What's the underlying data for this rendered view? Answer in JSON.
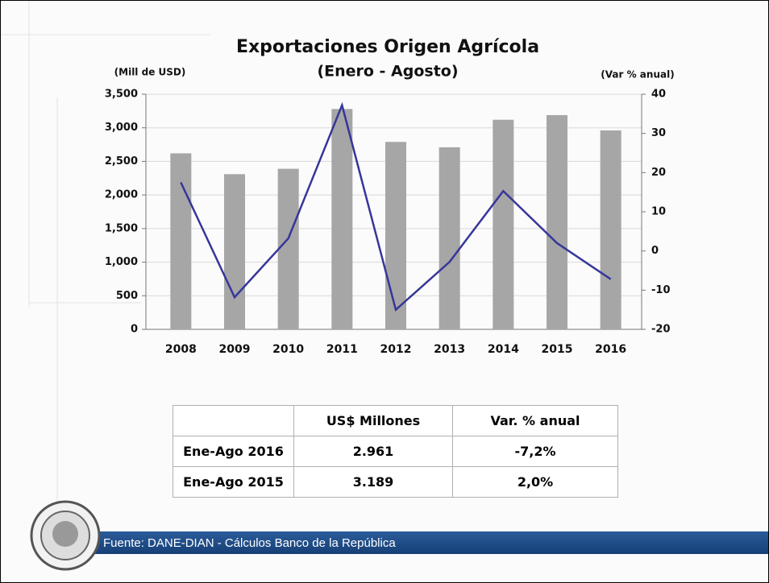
{
  "chart_data": {
    "type": "combo",
    "title": "Exportaciones Origen Agrícola",
    "subtitle": "(Enero - Agosto)",
    "y_label": "(Mill de USD)",
    "y2_label": "(Var % anual)",
    "categories": [
      "2008",
      "2009",
      "2010",
      "2011",
      "2012",
      "2013",
      "2014",
      "2015",
      "2016"
    ],
    "series": [
      {
        "type": "bar",
        "color": "#a6a6a6",
        "values": [
          2620,
          2310,
          2390,
          3280,
          2790,
          2710,
          3120,
          3189,
          2961
        ]
      },
      {
        "type": "line",
        "axis": "y2",
        "color": "#36369a",
        "values": [
          17.5,
          -11.8,
          3.2,
          37.2,
          -15.0,
          -2.8,
          15.3,
          2.0,
          -7.2
        ]
      }
    ],
    "ylim": [
      0,
      3500
    ],
    "yticks": [
      0,
      500,
      {
        "value": 1000,
        "label": "1,000"
      },
      {
        "value": 1500,
        "label": "1,500"
      },
      {
        "value": 2000,
        "label": "2,000"
      },
      {
        "value": 2500,
        "label": "2,500"
      },
      {
        "value": 3000,
        "label": "3,000"
      },
      {
        "value": 3500,
        "label": "3,500"
      }
    ],
    "y2lim": [
      -20,
      40
    ],
    "y2ticks": [
      -20,
      -10,
      0,
      10,
      20,
      30,
      40
    ],
    "grid": true
  },
  "table": {
    "header": [
      "US$ Millones",
      "Var. % anual"
    ],
    "rows": [
      [
        "Ene-Ago 2016",
        "2.961",
        "-7,2%"
      ],
      [
        "Ene-Ago 2015",
        "3.189",
        "2,0%"
      ]
    ]
  },
  "footer": {
    "source": "Fuente: DANE-DIAN - Cálculos Banco de la República"
  }
}
